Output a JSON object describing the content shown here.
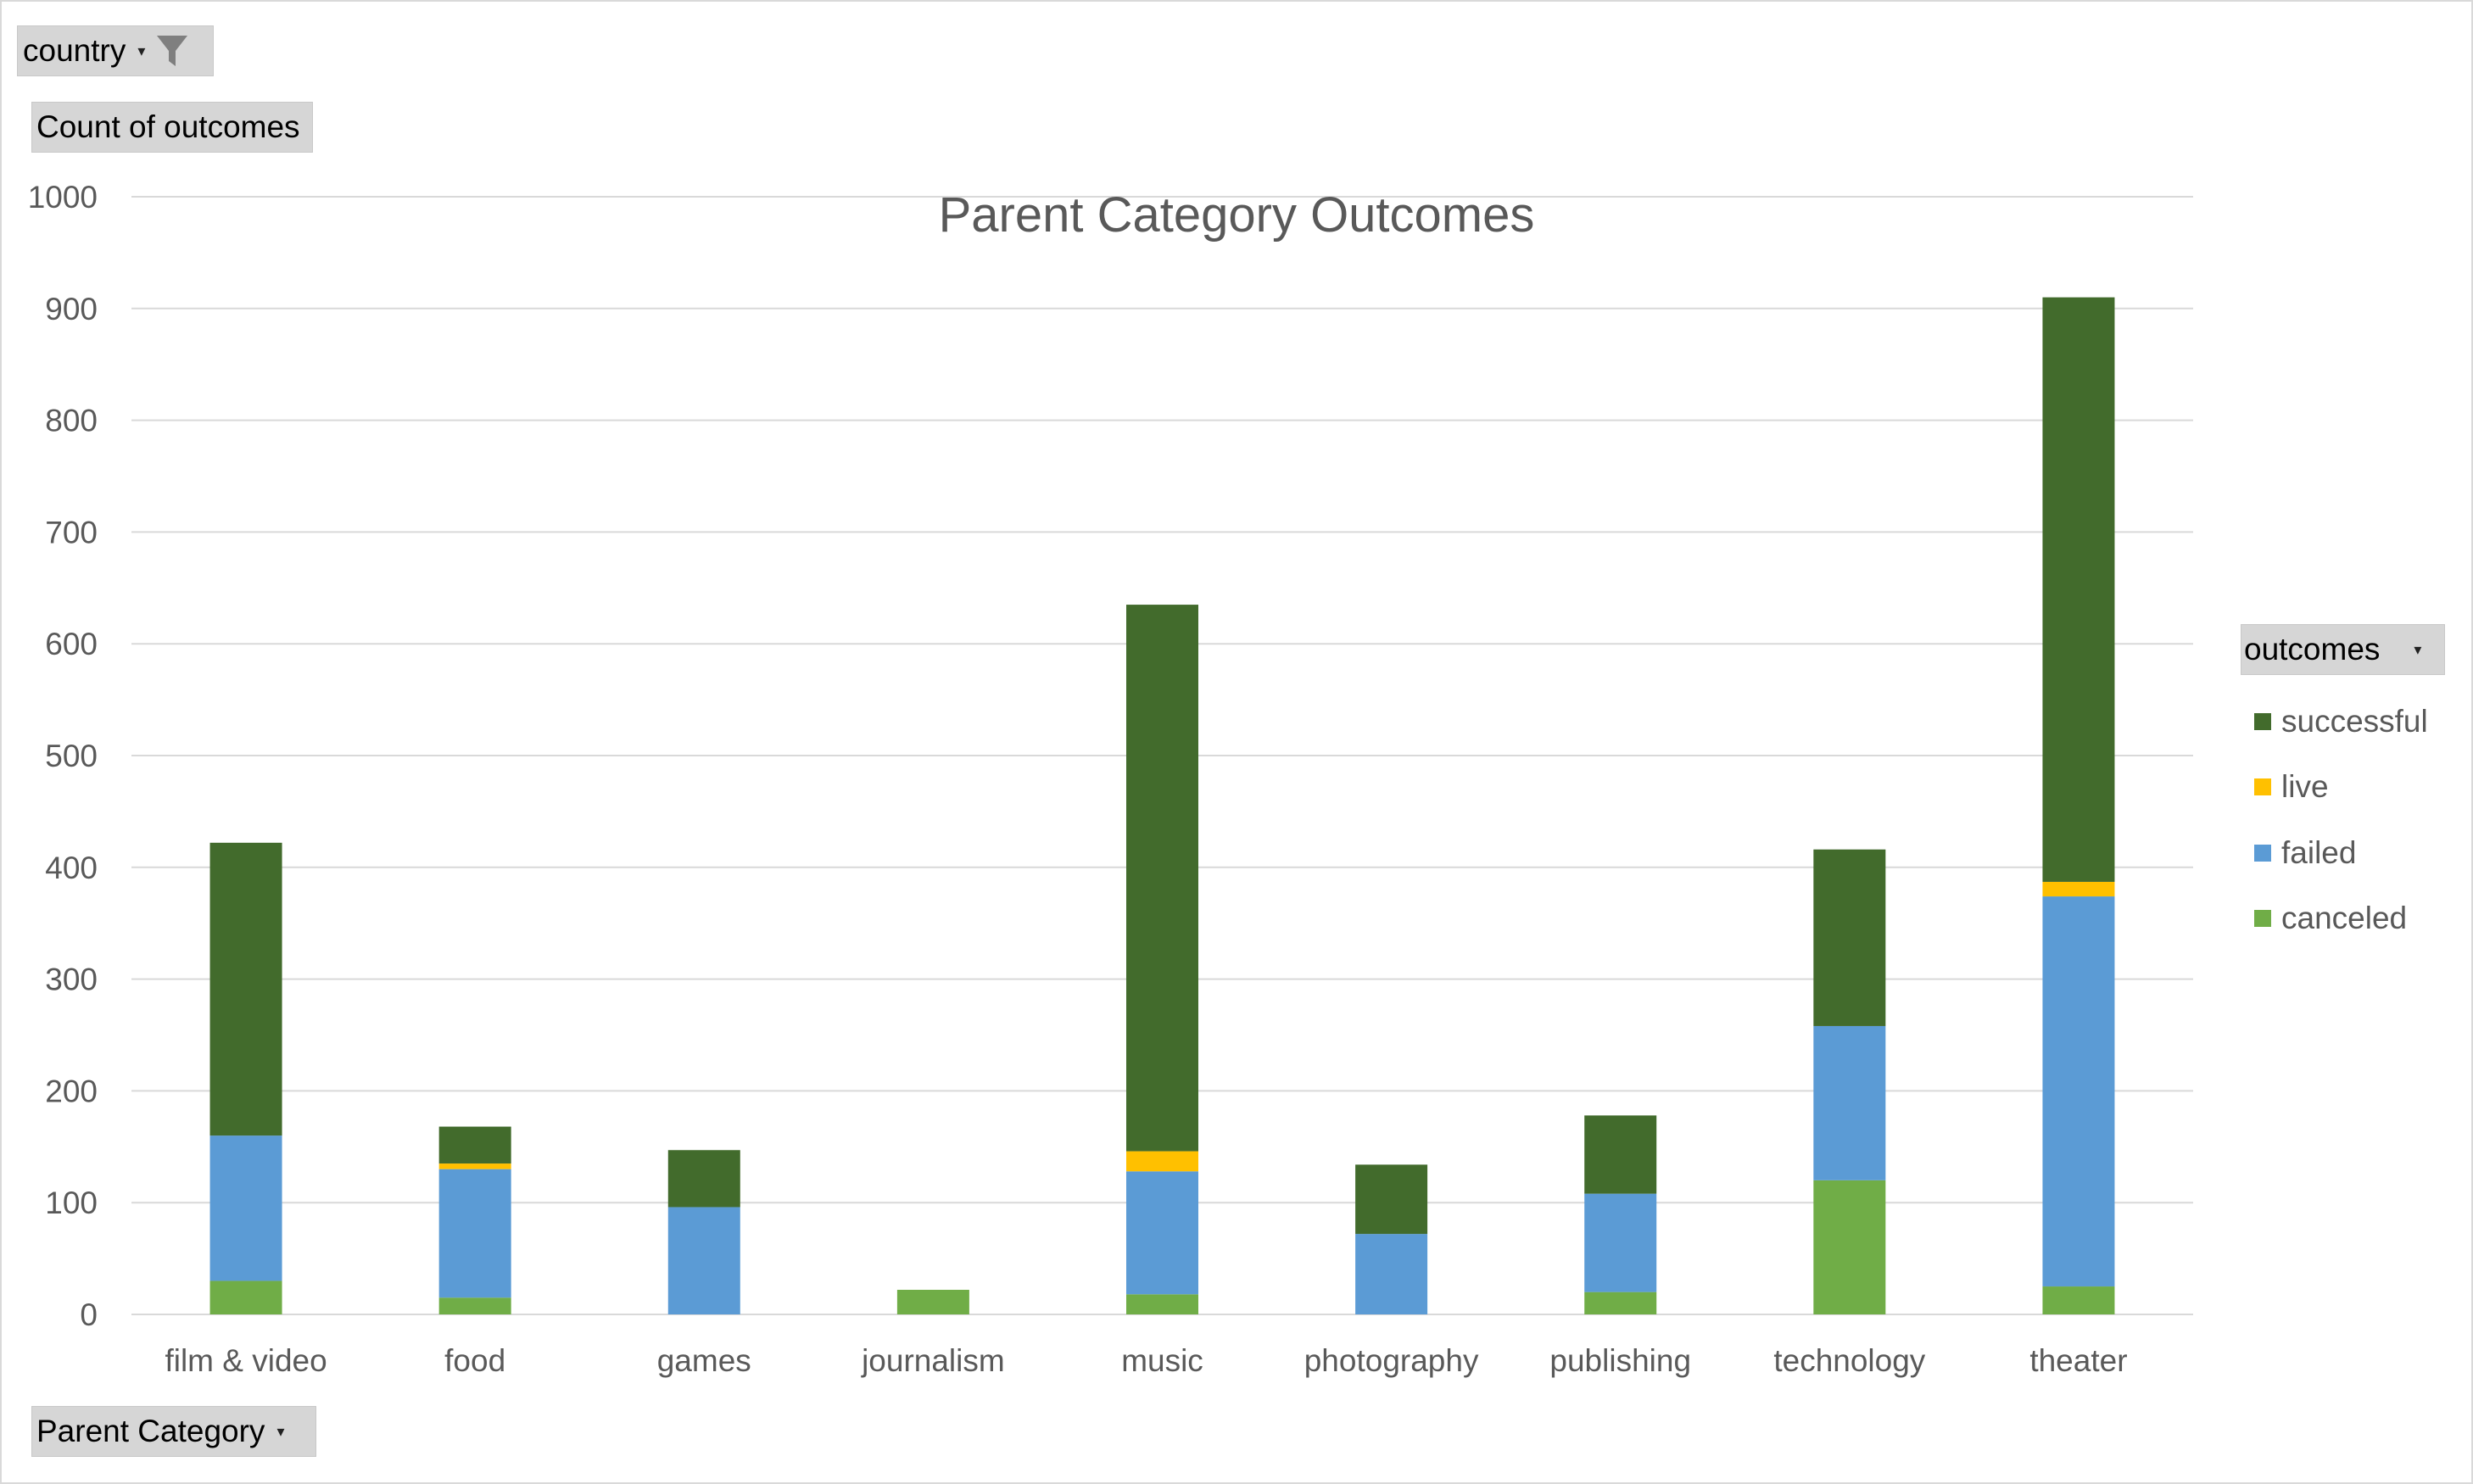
{
  "filters": {
    "country_label": "country",
    "value_label": "Count of outcomes",
    "axis_label": "Parent Category",
    "legend_label": "outcomes"
  },
  "colors": {
    "successful": "#426b2c",
    "live": "#ffc000",
    "failed": "#5b9bd5",
    "canceled": "#70ad47",
    "grid": "#d9d9d9",
    "text": "#595959"
  },
  "chart_data": {
    "type": "bar",
    "stacked": true,
    "title": "Parent Category Outcomes",
    "xlabel": "",
    "ylabel": "",
    "ylim": [
      0,
      1000
    ],
    "yticks": [
      0,
      100,
      200,
      300,
      400,
      500,
      600,
      700,
      800,
      900,
      1000
    ],
    "grid": true,
    "legend_position": "right",
    "categories": [
      "film & video",
      "food",
      "games",
      "journalism",
      "music",
      "photography",
      "publishing",
      "technology",
      "theater"
    ],
    "series": [
      {
        "name": "canceled",
        "values": [
          30,
          15,
          0,
          22,
          18,
          0,
          20,
          120,
          25
        ]
      },
      {
        "name": "failed",
        "values": [
          130,
          115,
          96,
          0,
          110,
          72,
          88,
          138,
          349
        ]
      },
      {
        "name": "live",
        "values": [
          0,
          5,
          0,
          0,
          18,
          0,
          0,
          0,
          13
        ]
      },
      {
        "name": "successful",
        "values": [
          262,
          33,
          51,
          0,
          489,
          62,
          70,
          158,
          523
        ]
      }
    ]
  }
}
